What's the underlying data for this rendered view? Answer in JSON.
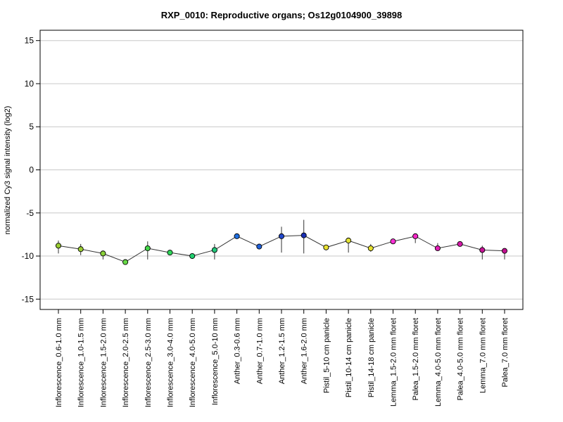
{
  "chart_data": {
    "type": "scatter",
    "title": "RXP_0010: Reproductive organs; Os12g0104900_39898",
    "ylabel": "normalized Cy3 signal intensity (log2)",
    "ylim": [
      -16.2,
      16.2
    ],
    "yticks": [
      -15,
      -10,
      -5,
      0,
      5,
      10,
      15
    ],
    "grid": true,
    "categories": [
      "Inflorescence_0.6-1.0 mm",
      "Inflorescence_1.0-1.5 mm",
      "Inflorescence_1.5-2.0 mm",
      "Inflorescence_2.0-2.5 mm",
      "Inflorescence_2.5-3.0 mm",
      "Inflorescence_3.0-4.0 mm",
      "Inflorescence_4.0-5.0 mm",
      "Inflorescence_5.0-10 mm",
      "Anther_0.3-0.6 mm",
      "Anther_0.7-1.0 mm",
      "Anther_1.2-1.5 mm",
      "Anther_1.6-2.0 mm",
      "Pistil_5-10 cm panicle",
      "Pistil_10-14 cm panicle",
      "Pistil_14-18 cm panicle",
      "Lemma_1.5-2.0 mm floret",
      "Palea_1.5-2.0 mm floret",
      "Lemma_4.0-5.0 mm floret",
      "Palea_4.0-5.0 mm floret",
      "Lemma_7.0 mm floret",
      "Palea_7.0 mm floret"
    ],
    "values": [
      -8.8,
      -9.2,
      -9.7,
      -10.7,
      -9.1,
      -9.6,
      -10.0,
      -9.3,
      -7.7,
      -8.9,
      -7.7,
      -7.6,
      -9.0,
      -8.2,
      -9.1,
      -8.3,
      -7.7,
      -9.1,
      -8.6,
      -9.3,
      -9.4
    ],
    "err_low": [
      -9.7,
      -9.9,
      -10.4,
      -10.8,
      -10.4,
      -9.8,
      -10.3,
      -10.4,
      -7.8,
      -9.1,
      -9.6,
      -9.7,
      -9.3,
      -9.6,
      -9.5,
      -8.5,
      -8.5,
      -9.4,
      -8.8,
      -10.4,
      -10.4
    ],
    "err_high": [
      -8.2,
      -8.6,
      -9.4,
      -10.6,
      -8.3,
      -9.5,
      -9.7,
      -8.6,
      -7.6,
      -8.7,
      -6.6,
      -5.8,
      -8.8,
      -8.0,
      -8.6,
      -8.2,
      -7.5,
      -8.5,
      -8.4,
      -8.8,
      -9.2
    ],
    "colors": [
      "#9acd32",
      "#9acd32",
      "#8bd23a",
      "#66d845",
      "#44d64a",
      "#2ed659",
      "#22d070",
      "#22c77a",
      "#1f6fe0",
      "#1f5fd8",
      "#2248cc",
      "#1a2fb5",
      "#e8e030",
      "#e2e235",
      "#e5e02e",
      "#ff2fd5",
      "#f427c8",
      "#e11fb5",
      "#d419a8",
      "#c81598",
      "#c0108f"
    ]
  }
}
